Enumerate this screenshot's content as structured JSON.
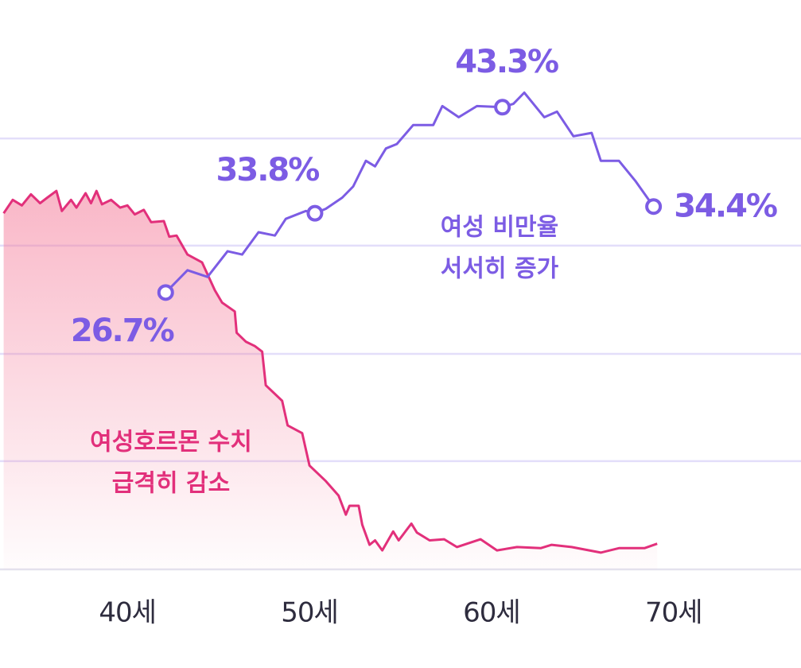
{
  "chart_data": {
    "type": "line",
    "xlim": [
      33,
      77
    ],
    "ylim": [
      1.9,
      45.35
    ],
    "xticks": [
      {
        "value": 40,
        "label": "40세"
      },
      {
        "value": 50,
        "label": "50세"
      },
      {
        "value": 60,
        "label": "60세"
      },
      {
        "value": 70,
        "label": "70세"
      }
    ],
    "gridlines": [
      1.9,
      11.6,
      21.2,
      30.9,
      40.5
    ],
    "grid": true,
    "series": [
      {
        "name": "여성호르몬 수치",
        "color": "#e2307b",
        "area": true,
        "x": [
          33.2,
          33.7,
          34.2,
          34.7,
          35.2,
          35.6,
          36.1,
          36.4,
          36.9,
          37.2,
          37.7,
          38.0,
          38.3,
          38.6,
          39.1,
          39.6,
          40.0,
          40.4,
          40.9,
          41.3,
          42.0,
          42.3,
          42.7,
          43.3,
          44.1,
          44.8,
          45.2,
          45.9,
          46.0,
          46.5,
          47.0,
          47.4,
          47.6,
          48.5,
          48.8,
          49.6,
          50.0,
          50.9,
          51.6,
          52.0,
          52.2,
          52.7,
          52.9,
          53.3,
          53.6,
          54.0,
          54.6,
          54.9,
          55.6,
          55.9,
          56.6,
          57.4,
          58.1,
          59.4,
          60.3,
          61.4,
          62.7,
          63.3,
          64.4,
          66.0,
          67.0,
          68.4,
          69.1
        ],
        "values": [
          33.8,
          35.0,
          34.5,
          35.5,
          34.7,
          35.2,
          35.8,
          34.0,
          35.0,
          34.3,
          35.6,
          34.7,
          35.8,
          34.6,
          35.0,
          34.3,
          34.5,
          33.7,
          34.1,
          33.0,
          33.1,
          31.7,
          31.8,
          30.1,
          29.4,
          26.9,
          25.8,
          25.0,
          23.1,
          22.3,
          21.9,
          21.4,
          18.4,
          17.0,
          14.8,
          14.1,
          11.2,
          9.8,
          8.5,
          6.8,
          7.6,
          7.6,
          5.9,
          4.1,
          4.5,
          3.6,
          5.3,
          4.5,
          6.0,
          5.2,
          4.5,
          4.6,
          3.9,
          4.6,
          3.6,
          3.9,
          3.8,
          4.1,
          3.9,
          3.4,
          3.8,
          3.8,
          4.2
        ]
      },
      {
        "name": "여성 비만율",
        "color": "#7c5ce4",
        "x": [
          42.1,
          43.3,
          44.4,
          45.5,
          46.3,
          47.2,
          48.1,
          48.7,
          49.8,
          50.3,
          50.9,
          51.8,
          52.4,
          53.1,
          53.6,
          54.2,
          54.8,
          55.7,
          56.8,
          57.3,
          58.2,
          59.2,
          60.6,
          61.2,
          61.8,
          62.9,
          63.6,
          64.5,
          65.5,
          66.0,
          67.0,
          67.9,
          68.9
        ],
        "values": [
          26.7,
          28.7,
          28.1,
          30.4,
          30.1,
          32.1,
          31.8,
          33.3,
          34.0,
          33.8,
          34.2,
          35.2,
          36.2,
          38.5,
          38.0,
          39.6,
          40.0,
          41.7,
          41.7,
          43.4,
          42.4,
          43.4,
          43.3,
          43.6,
          44.6,
          42.4,
          42.9,
          40.7,
          41.0,
          38.5,
          38.5,
          36.7,
          34.4
        ],
        "value_labels": [
          "26.7%",
          null,
          null,
          null,
          null,
          null,
          null,
          null,
          null,
          "33.8%",
          null,
          null,
          null,
          null,
          null,
          null,
          null,
          null,
          null,
          null,
          null,
          null,
          "43.3%",
          null,
          null,
          null,
          null,
          null,
          null,
          null,
          null,
          null,
          "34.4%"
        ]
      }
    ],
    "annotations": [
      {
        "lines": [
          "여성호르몬 수치",
          "급격히 감소"
        ],
        "color": "#e2307b"
      },
      {
        "lines": [
          "여성 비만율",
          "서서히 증가"
        ],
        "color": "#7c5ce4"
      }
    ]
  }
}
